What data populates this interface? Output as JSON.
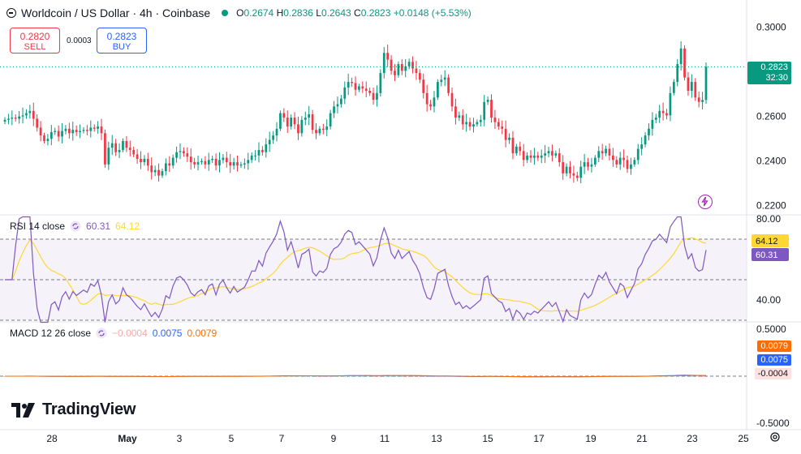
{
  "header": {
    "title": "Worldcoin / US Dollar · 4h · Coinbase",
    "ohlc": [
      {
        "k": "O",
        "v": "0.2674"
      },
      {
        "k": "H",
        "v": "0.2836"
      },
      {
        "k": "L",
        "v": "0.2643"
      },
      {
        "k": "C",
        "v": "0.2823"
      },
      {
        "k": "",
        "v": "+0.0148 (+5.53%)"
      }
    ],
    "status_color": "#089981"
  },
  "trade": {
    "sell_price": "0.2820",
    "sell_label": "SELL",
    "spread": "0.0003",
    "buy_price": "0.2823",
    "buy_label": "BUY"
  },
  "price_tag": {
    "value": "0.2823",
    "countdown": "32:30"
  },
  "rsi": {
    "legend": "RSI 14 close",
    "value": "60.31",
    "ma_value": "64.12"
  },
  "macd": {
    "legend": "MACD 12 26 close",
    "hist": "−0.0004",
    "macd": "0.0075",
    "signal": "0.0079",
    "tag_signal": "0.0079",
    "tag_macd": "0.0075",
    "tag_hist": "-0.0004"
  },
  "brand": {
    "name": "TradingView"
  },
  "colors": {
    "up": "#089981",
    "down": "#f23645",
    "rsi_line": "#7e57c2",
    "rsi_ma": "#fdd835",
    "macd": "#2962ff",
    "signal": "#ff6d00"
  },
  "chart_data": {
    "type": "candlestick",
    "price_axis": {
      "ticks": [
        "0.3000",
        "0.2600",
        "0.2400",
        "0.2200"
      ],
      "ylim": [
        0.217,
        0.3035
      ]
    },
    "x_ticks": [
      "28",
      "May",
      "3",
      "5",
      "7",
      "9",
      "11",
      "13",
      "15",
      "17",
      "19",
      "21",
      "23",
      "25"
    ],
    "rsi_axis": {
      "ticks": [
        "80.00",
        "40.00"
      ],
      "ylim": [
        30,
        80
      ],
      "bands": [
        70,
        50,
        30
      ]
    },
    "macd_axis": {
      "ticks": [
        "0.5000",
        "-0.5000"
      ],
      "ylim": [
        -0.55,
        0.55
      ]
    },
    "close": [
      0.2585,
      0.259,
      0.2595,
      0.259,
      0.26,
      0.2605,
      0.2615,
      0.2625,
      0.259,
      0.255,
      0.2515,
      0.249,
      0.25,
      0.253,
      0.2535,
      0.251,
      0.2535,
      0.2545,
      0.2525,
      0.254,
      0.253,
      0.2535,
      0.254,
      0.2535,
      0.255,
      0.2545,
      0.2555,
      0.2525,
      0.2385,
      0.246,
      0.248,
      0.244,
      0.245,
      0.249,
      0.246,
      0.245,
      0.243,
      0.241,
      0.2395,
      0.241,
      0.238,
      0.235,
      0.236,
      0.2335,
      0.2355,
      0.239,
      0.238,
      0.2415,
      0.244,
      0.2445,
      0.2435,
      0.242,
      0.2395,
      0.2385,
      0.2395,
      0.24,
      0.2385,
      0.2405,
      0.241,
      0.238,
      0.2405,
      0.2415,
      0.2395,
      0.238,
      0.2395,
      0.238,
      0.2385,
      0.239,
      0.2405,
      0.2425,
      0.2425,
      0.245,
      0.244,
      0.2475,
      0.2495,
      0.2515,
      0.2545,
      0.2615,
      0.2595,
      0.2555,
      0.2595,
      0.2565,
      0.2525,
      0.2585,
      0.2595,
      0.261,
      0.254,
      0.2525,
      0.2545,
      0.254,
      0.2555,
      0.2615,
      0.2645,
      0.2655,
      0.268,
      0.273,
      0.2755,
      0.275,
      0.272,
      0.2735,
      0.2725,
      0.2715,
      0.2705,
      0.2675,
      0.2705,
      0.2795,
      0.2885,
      0.2855,
      0.2805,
      0.2785,
      0.2835,
      0.2805,
      0.2825,
      0.2845,
      0.2815,
      0.2795,
      0.2765,
      0.2705,
      0.2655,
      0.2645,
      0.2685,
      0.2755,
      0.2765,
      0.2775,
      0.2705,
      0.2645,
      0.2595,
      0.2605,
      0.2565,
      0.2575,
      0.2555,
      0.2565,
      0.2575,
      0.2585,
      0.2665,
      0.2675,
      0.2595,
      0.2575,
      0.2555,
      0.2545,
      0.2495,
      0.2505,
      0.2435,
      0.2465,
      0.2445,
      0.2405,
      0.2425,
      0.2415,
      0.2425,
      0.2415,
      0.2425,
      0.2435,
      0.2445,
      0.2425,
      0.2435,
      0.2395,
      0.2345,
      0.2375,
      0.2345,
      0.2335,
      0.2325,
      0.2375,
      0.2395,
      0.2375,
      0.2385,
      0.2415,
      0.2445,
      0.2435,
      0.2455,
      0.2425,
      0.2405,
      0.2385,
      0.2415,
      0.2405,
      0.2365,
      0.2385,
      0.2405,
      0.2455,
      0.2475,
      0.2515,
      0.2545,
      0.2585,
      0.2595,
      0.2625,
      0.2615,
      0.2605,
      0.2705,
      0.2755,
      0.2835,
      0.2905,
      0.2775,
      0.2715,
      0.2755,
      0.2685,
      0.2665,
      0.2674,
      0.2823
    ]
  }
}
